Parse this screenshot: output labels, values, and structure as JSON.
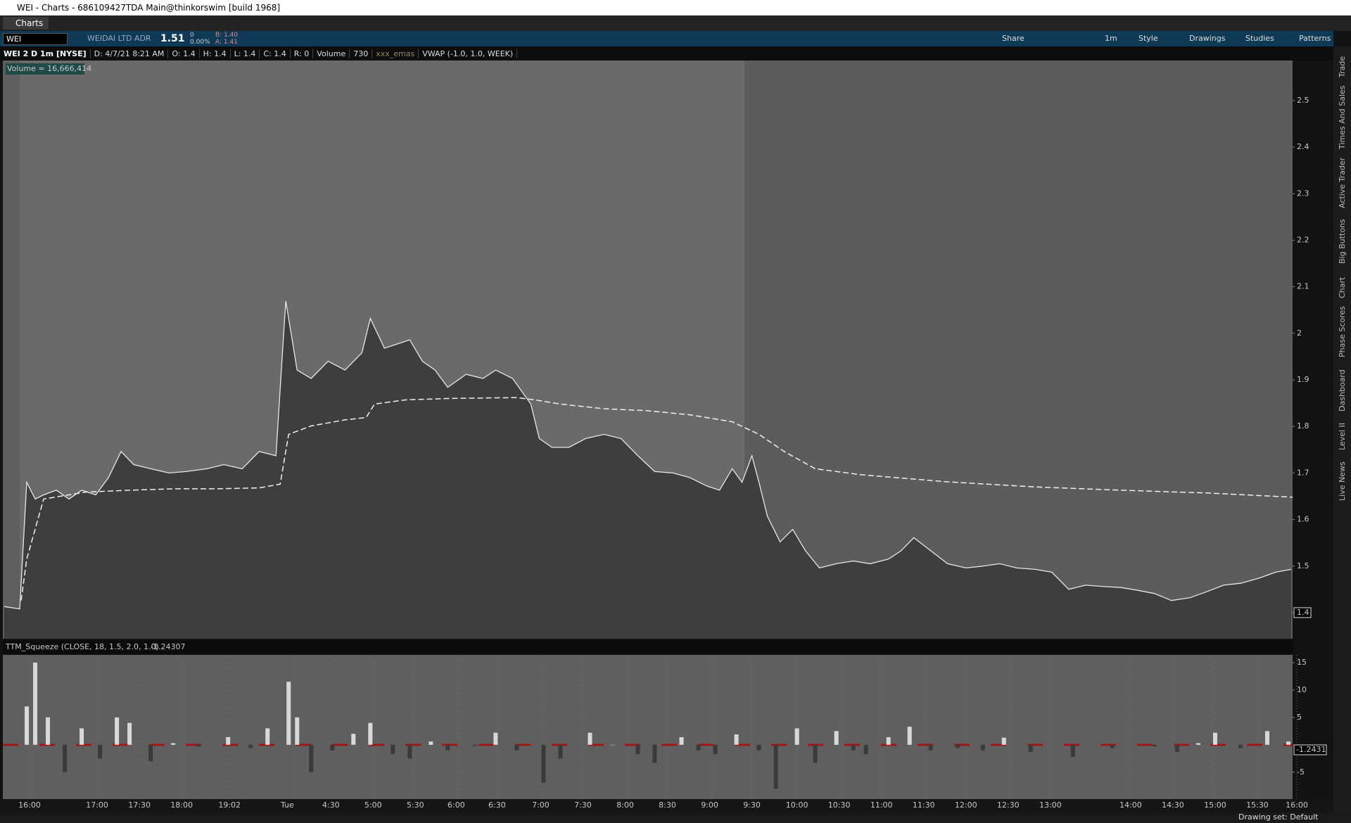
{
  "window": {
    "title": "WEI - Charts - 686109427TDA Main@thinkorswim [build 1968]"
  },
  "tabs": [
    "Charts"
  ],
  "toolbar": {
    "symbol": "WEI",
    "description": "WEIDAI LTD ADR",
    "last": "1.51",
    "change": "0",
    "change_pct": "0.00%",
    "bid": "B: 1.40",
    "ask": "A: 1.41",
    "buttons": [
      "Share",
      "1m",
      "Style",
      "Drawings",
      "Studies",
      "Patterns"
    ]
  },
  "info_bar": [
    "WEI 2 D 1m [NYSE]",
    "D: 4/7/21 8:21 AM",
    "O: 1.4",
    "H: 1.4",
    "L: 1.4",
    "C: 1.4",
    "R: 0",
    "Volume",
    "730",
    "xxx_emas",
    "VWAP (-1.0, 1.0, WEEK)"
  ],
  "side_tabs": [
    "Trade",
    "Times And Sales",
    "Active Trader",
    "Big Buttons",
    "Chart",
    "Phase Scores",
    "Dashboard",
    "Level II",
    "Live News"
  ],
  "status": "Drawing set: Default",
  "chart_data": [
    {
      "type": "line",
      "annotation": "Volume = 16,666,414",
      "xlim": [
        -19,
        897
      ],
      "xticks": [
        {
          "value": 0,
          "label": "16:00"
        },
        {
          "value": 48,
          "label": "17:00"
        },
        {
          "value": 78,
          "label": "17:30"
        },
        {
          "value": 108,
          "label": "18:00"
        },
        {
          "value": 142,
          "label": "19:02"
        },
        {
          "value": 183,
          "label": "Tue"
        },
        {
          "value": 214,
          "label": "4:30"
        },
        {
          "value": 244,
          "label": "5:00"
        },
        {
          "value": 274,
          "label": "5:30"
        },
        {
          "value": 303,
          "label": "6:00"
        },
        {
          "value": 332,
          "label": "6:30"
        },
        {
          "value": 363,
          "label": "7:00"
        },
        {
          "value": 393,
          "label": "7:30"
        },
        {
          "value": 423,
          "label": "8:00"
        },
        {
          "value": 453,
          "label": "8:30"
        },
        {
          "value": 483,
          "label": "9:00"
        },
        {
          "value": 513,
          "label": "9:30"
        },
        {
          "value": 545,
          "label": "10:00"
        },
        {
          "value": 575,
          "label": "10:30"
        },
        {
          "value": 605,
          "label": "11:00"
        },
        {
          "value": 635,
          "label": "11:30"
        },
        {
          "value": 665,
          "label": "12:00"
        },
        {
          "value": 695,
          "label": "12:30"
        },
        {
          "value": 725,
          "label": "13:00"
        },
        {
          "value": 782,
          "label": "14:00"
        },
        {
          "value": 812,
          "label": "14:30"
        },
        {
          "value": 842,
          "label": "15:00"
        },
        {
          "value": 872,
          "label": "15:30"
        },
        {
          "value": 900,
          "label": "16:00"
        }
      ],
      "ylim": [
        1.344,
        2.586
      ],
      "yticks": [
        1.4,
        1.5,
        1.6,
        1.7,
        1.8,
        1.9,
        2,
        2.1,
        2.2,
        2.3,
        2.4,
        2.5
      ],
      "series": [
        {
          "color": "#e8e8e8",
          "fill": "#3e3e3e",
          "x": [
            -18,
            -7,
            -2,
            4,
            10,
            19,
            28,
            37,
            47,
            56,
            65,
            74,
            86,
            99,
            111,
            126,
            138,
            151,
            163,
            175,
            180,
            182,
            190,
            200,
            212,
            224,
            236,
            242,
            252,
            261,
            270,
            279,
            288,
            297,
            310,
            322,
            331,
            343,
            356,
            362,
            371,
            383,
            395,
            408,
            420,
            432,
            444,
            457,
            469,
            481,
            490,
            499,
            506,
            513,
            518,
            524,
            533,
            542,
            551,
            561,
            573,
            585,
            597,
            610,
            619,
            628,
            640,
            652,
            665,
            677,
            689,
            701,
            714,
            726,
            738,
            750,
            763,
            775,
            787,
            799,
            811,
            824,
            836,
            848,
            860,
            873,
            885,
            896
          ],
          "values": [
            1.413,
            1.408,
            1.68,
            1.644,
            1.653,
            1.663,
            1.644,
            1.663,
            1.653,
            1.69,
            1.746,
            1.718,
            1.709,
            1.7,
            1.703,
            1.709,
            1.718,
            1.709,
            1.746,
            1.737,
            1.977,
            2.069,
            1.921,
            1.903,
            1.94,
            1.921,
            1.958,
            2.032,
            1.968,
            1.977,
            1.986,
            1.94,
            1.921,
            1.884,
            1.912,
            1.903,
            1.921,
            1.903,
            1.848,
            1.774,
            1.755,
            1.755,
            1.774,
            1.783,
            1.774,
            1.737,
            1.703,
            1.7,
            1.69,
            1.672,
            1.663,
            1.709,
            1.68,
            1.737,
            1.68,
            1.607,
            1.552,
            1.579,
            1.533,
            1.496,
            1.505,
            1.511,
            1.505,
            1.515,
            1.533,
            1.561,
            1.533,
            1.505,
            1.496,
            1.5,
            1.505,
            1.496,
            1.493,
            1.487,
            1.45,
            1.459,
            1.456,
            1.454,
            1.448,
            1.441,
            1.426,
            1.432,
            1.445,
            1.459,
            1.463,
            1.474,
            1.487,
            1.493
          ]
        },
        {
          "color": "#f0f0f0",
          "dashed": true,
          "x": [
            -6,
            -2,
            10,
            40,
            71,
            102,
            132,
            163,
            178,
            184,
            200,
            224,
            239,
            245,
            267,
            297,
            346,
            359,
            377,
            408,
            438,
            469,
            499,
            518,
            536,
            558,
            591,
            652,
            714,
            775,
            836,
            897
          ],
          "values": [
            1.426,
            1.515,
            1.644,
            1.659,
            1.663,
            1.666,
            1.666,
            1.668,
            1.676,
            1.783,
            1.801,
            1.814,
            1.819,
            1.848,
            1.857,
            1.86,
            1.862,
            1.857,
            1.848,
            1.838,
            1.834,
            1.825,
            1.81,
            1.783,
            1.746,
            1.709,
            1.696,
            1.681,
            1.67,
            1.663,
            1.657,
            1.648
          ]
        }
      ]
    },
    {
      "type": "bar",
      "title": "TTM_Squeeze (CLOSE, 18, 1.5, 2.0, 1.0)",
      "last_value": "-1.24307",
      "axis_label": "-1.2431",
      "xlim": [
        -19,
        897
      ],
      "ylim": [
        -9.9,
        16.4
      ],
      "yticks": [
        15,
        10,
        5,
        -5
      ],
      "positive_color": "#d8d8d8",
      "negative_color": "#3a3a3a",
      "x": [
        -2,
        4,
        13,
        25,
        37,
        50,
        62,
        71,
        86,
        102,
        120,
        141,
        157,
        169,
        184,
        190,
        200,
        215,
        230,
        242,
        258,
        270,
        285,
        297,
        316,
        331,
        346,
        365,
        377,
        398,
        414,
        432,
        444,
        463,
        475,
        487,
        502,
        518,
        530,
        545,
        558,
        573,
        585,
        594,
        610,
        625,
        640,
        659,
        677,
        692,
        711,
        741,
        769,
        799,
        815,
        830,
        842,
        860,
        879,
        894
      ],
      "values": [
        7,
        15,
        5,
        -5,
        3,
        -2.5,
        5,
        4,
        -3,
        0.3,
        -0.3,
        1.4,
        -0.6,
        3,
        11.5,
        5,
        -5,
        -1,
        2,
        4,
        -1.7,
        -2.5,
        0.6,
        -1,
        -0.2,
        2.2,
        -1,
        -6.9,
        -2.5,
        2.2,
        0,
        -1.7,
        -3.3,
        1.4,
        -1,
        -1.7,
        1.9,
        -1,
        -8,
        3,
        -3.3,
        2.5,
        -1,
        -1.7,
        1.4,
        3.3,
        -1,
        -0.6,
        -1,
        1.3,
        -1.3,
        -2.2,
        -0.6,
        -0.3,
        -1.3,
        0.3,
        2.2,
        -0.6,
        2.5,
        0.6
      ]
    }
  ]
}
